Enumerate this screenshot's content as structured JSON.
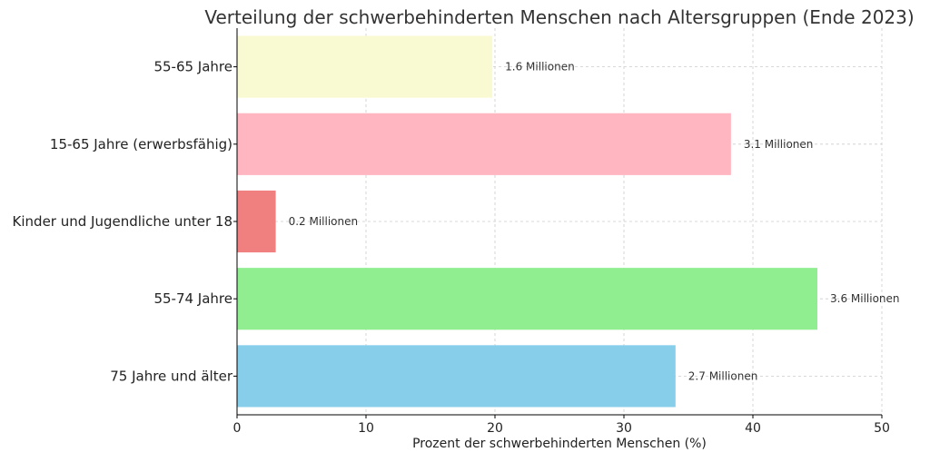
{
  "chart_data": {
    "type": "bar",
    "orientation": "horizontal",
    "title": "Verteilung der schwerbehinderten Menschen nach Altersgruppen (Ende 2023)",
    "xlabel": "Prozent der schwerbehinderten Menschen (%)",
    "ylabel": "",
    "xlim": [
      0,
      50
    ],
    "xticks": [
      0,
      10,
      20,
      30,
      40,
      50
    ],
    "grid": true,
    "categories": [
      "55-65 Jahre",
      "15-65 Jahre (erwerbsfähig)",
      "Kinder und Jugendliche unter 18",
      "55-74 Jahre",
      "75 Jahre und älter"
    ],
    "values": [
      19.8,
      38.3,
      3.0,
      45.0,
      34.0
    ],
    "data_labels": [
      "1.6 Millionen",
      "3.1 Millionen",
      "0.2 Millionen",
      "3.6 Millionen",
      "2.7 Millionen"
    ],
    "colors": [
      "#fafad2",
      "#ffb6c1",
      "#f08080",
      "#90ee90",
      "#87ceeb"
    ]
  }
}
